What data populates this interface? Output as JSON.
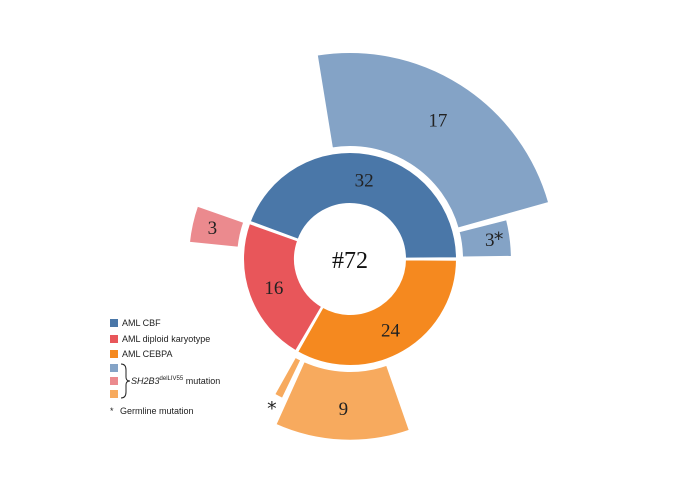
{
  "chart_data": {
    "type": "sunburst",
    "center_label": "#72",
    "inner_ring": [
      {
        "name": "AML CBF",
        "value": 32,
        "label": "32",
        "color": "#4A77A8"
      },
      {
        "name": "AML diploid karyotype",
        "value": 16,
        "label": "16",
        "color": "#E8565A"
      },
      {
        "name": "AML CEBPA",
        "value": 24,
        "label": "24",
        "color": "#F5891F"
      }
    ],
    "outer_ring": [
      {
        "parent": "AML CBF",
        "value": 3,
        "label": "3",
        "germline": true,
        "color": "#84A3C6"
      },
      {
        "parent": "AML CBF",
        "value": 17,
        "label": "17",
        "germline": false,
        "color": "#84A3C6"
      },
      {
        "parent": "AML diploid karyotype",
        "value": 3,
        "label": "3",
        "germline": false,
        "color": "#EB8A8E"
      },
      {
        "parent": "AML CEBPA",
        "value": 1,
        "label": "",
        "germline": true,
        "color": "#F7AA5E"
      },
      {
        "parent": "AML CEBPA",
        "value": 9,
        "label": "9",
        "germline": false,
        "color": "#F7AA5E"
      }
    ],
    "legend": {
      "items": [
        {
          "label": "AML CBF",
          "color": "#4A77A8"
        },
        {
          "label": "AML diploid karyotype",
          "color": "#E8565A"
        },
        {
          "label": "AML CEBPA",
          "color": "#F5891F"
        }
      ],
      "mutation_colors": [
        "#84A3C6",
        "#EB8A8E",
        "#F7AA5E"
      ],
      "mutation_gene": "SH2B3",
      "mutation_superscript": "delLIV55",
      "mutation_suffix": " mutation",
      "germline_symbol": "*",
      "germline_label": "Germline mutation",
      "placement": "bottom-left"
    }
  }
}
